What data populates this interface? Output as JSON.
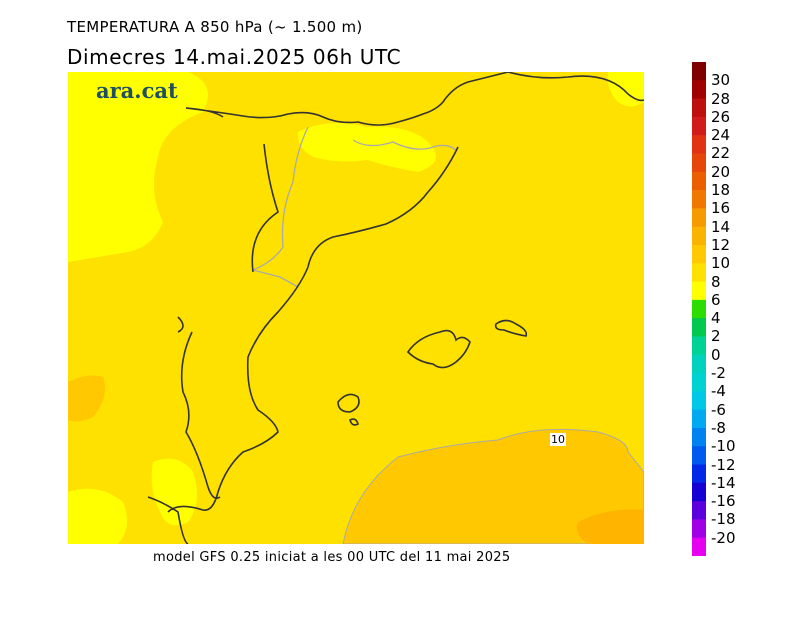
{
  "header": {
    "title": "TEMPERATURA A 850 hPa (~ 1.500 m)",
    "subtitle": "Dimecres  14.mai.2025 06h UTC"
  },
  "logo": {
    "text": "ara.cat"
  },
  "footer": {
    "text": "model GFS 0.25 iniciat a les 00 UTC del 11 mai 2025"
  },
  "map": {
    "contour_label": "10",
    "colors": {
      "main": "#FFE100",
      "cool": "#FFFF00",
      "warm": "#FFC800",
      "warmer": "#FFB400",
      "coast": "#333333",
      "border": "#AAAAAA"
    }
  },
  "scale": {
    "labels": [
      "30",
      "28",
      "26",
      "24",
      "22",
      "20",
      "18",
      "16",
      "14",
      "12",
      "10",
      "8",
      "6",
      "4",
      "2",
      "0",
      "-2",
      "-4",
      "-6",
      "-8",
      "-10",
      "-12",
      "-14",
      "-16",
      "-18",
      "-20"
    ],
    "colors": [
      "#7F0000",
      "#A00000",
      "#BE0F0F",
      "#D21C1C",
      "#E13214",
      "#E6460A",
      "#EB5F00",
      "#F07800",
      "#F59B00",
      "#FAB400",
      "#FFC800",
      "#FFE100",
      "#FFFF00",
      "#2DDC00",
      "#00C850",
      "#00D296",
      "#00D2BE",
      "#00D2D2",
      "#00C8E6",
      "#00AAF0",
      "#0082F0",
      "#005AF0",
      "#0028E6",
      "#1400D2",
      "#5A00DC",
      "#A000E6",
      "#E600F0"
    ]
  }
}
